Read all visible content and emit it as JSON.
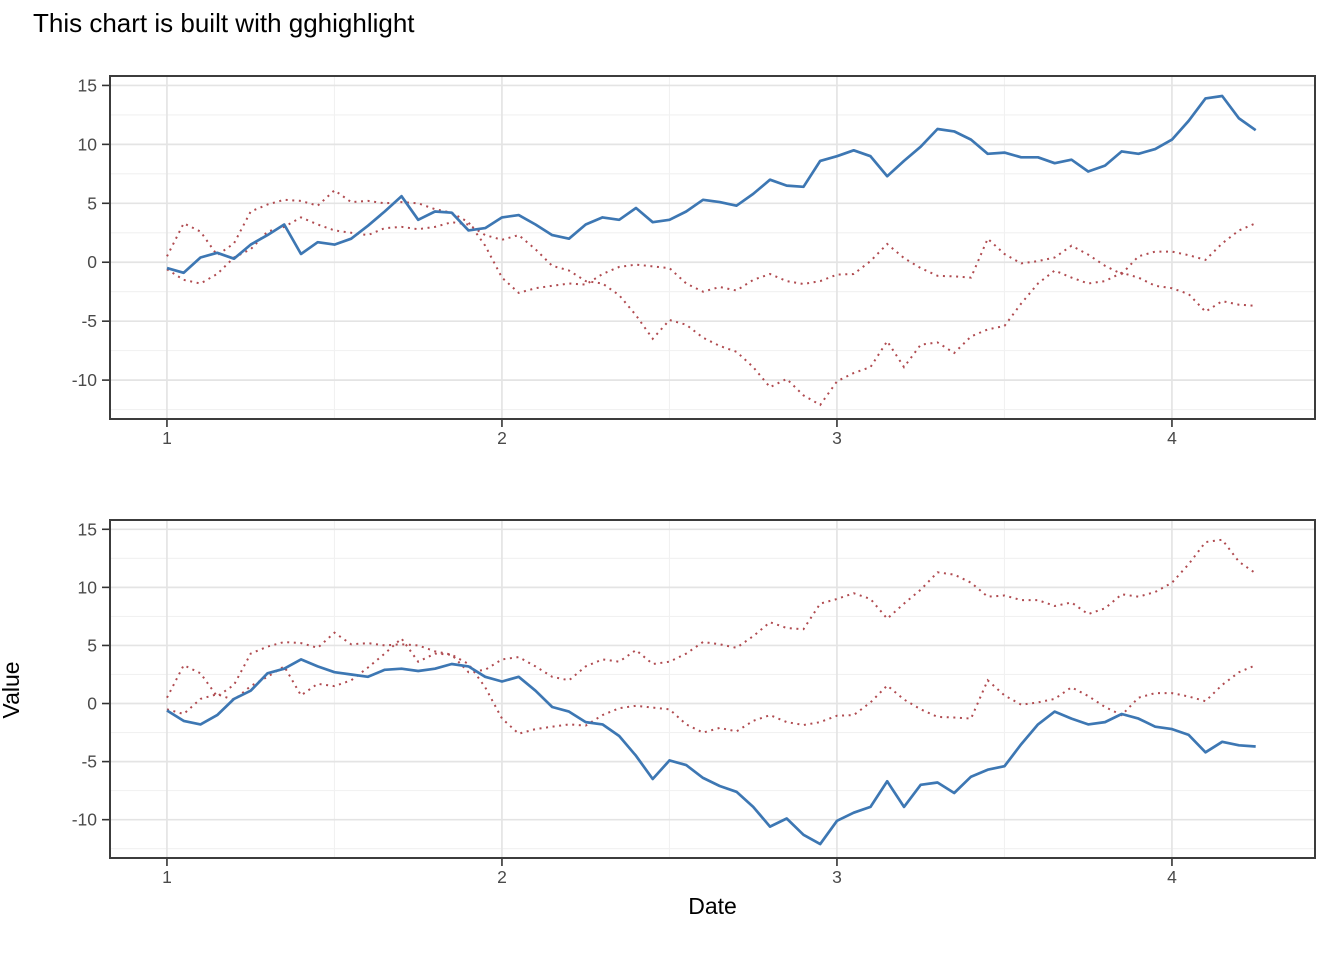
{
  "chart_data": {
    "type": "line",
    "title": "This chart is built with gghighlight",
    "xlabel": "Date",
    "ylabel": "Value",
    "x_ticks": [
      1,
      2,
      3,
      4
    ],
    "y_ticks": [
      15,
      10,
      5,
      0,
      -5,
      -10
    ],
    "x_minor": [
      1.5,
      2.5,
      3.5
    ],
    "y_minor": [
      12.5,
      7.5,
      2.5,
      -2.5,
      -7.5,
      -12.5
    ],
    "x_domain": [
      0.83,
      4.427
    ],
    "y_domain": [
      -13.3,
      15.8
    ],
    "x_start": 1,
    "x_step": 0.05,
    "grid": "on",
    "legend": "none",
    "series": [
      {
        "id": "a",
        "values": [
          -0.5,
          -0.9,
          0.4,
          0.8,
          0.3,
          1.5,
          2.3,
          3.2,
          0.7,
          1.7,
          1.5,
          2.0,
          3.1,
          4.3,
          5.6,
          3.6,
          4.3,
          4.2,
          2.7,
          2.9,
          3.8,
          4.0,
          3.2,
          2.3,
          2.0,
          3.2,
          3.8,
          3.6,
          4.6,
          3.4,
          3.6,
          4.3,
          5.3,
          5.1,
          4.8,
          5.8,
          7.0,
          6.5,
          6.4,
          8.6,
          9.0,
          9.5,
          9.0,
          7.3,
          8.6,
          9.8,
          11.3,
          11.1,
          10.4,
          9.2,
          9.3,
          8.9,
          8.9,
          8.4,
          8.7,
          7.7,
          8.2,
          9.4,
          9.2,
          9.6,
          10.4,
          12.0,
          13.9,
          14.1,
          12.2,
          11.2
        ]
      },
      {
        "id": "b",
        "values": [
          0.5,
          3.3,
          2.6,
          0.6,
          1.6,
          4.3,
          4.9,
          5.3,
          5.2,
          4.8,
          6.1,
          5.1,
          5.2,
          5.0,
          5.1,
          5.0,
          4.5,
          4.2,
          3.4,
          1.4,
          -1.3,
          -2.6,
          -2.2,
          -2.0,
          -1.8,
          -1.9,
          -1.0,
          -0.4,
          -0.2,
          -0.35,
          -0.5,
          -1.8,
          -2.5,
          -2.1,
          -2.4,
          -1.5,
          -1.0,
          -1.6,
          -1.85,
          -1.6,
          -1.05,
          -1.0,
          0.1,
          1.55,
          0.35,
          -0.5,
          -1.15,
          -1.2,
          -1.3,
          2.0,
          0.7,
          -0.1,
          0.1,
          0.4,
          1.4,
          0.65,
          -0.3,
          -1.0,
          0.5,
          0.9,
          0.9,
          0.6,
          0.2,
          1.6,
          2.7,
          3.3
        ]
      },
      {
        "id": "c",
        "values": [
          -0.6,
          -1.5,
          -1.8,
          -1.0,
          0.4,
          1.1,
          2.6,
          3.0,
          3.8,
          3.2,
          2.7,
          2.5,
          2.3,
          2.9,
          3.0,
          2.8,
          3.0,
          3.4,
          3.2,
          2.3,
          1.9,
          2.3,
          1.1,
          -0.3,
          -0.7,
          -1.6,
          -1.8,
          -2.8,
          -4.5,
          -6.5,
          -4.9,
          -5.3,
          -6.4,
          -7.1,
          -7.6,
          -8.9,
          -10.6,
          -9.9,
          -11.3,
          -12.1,
          -10.1,
          -9.4,
          -8.9,
          -6.7,
          -8.9,
          -7.0,
          -6.8,
          -7.7,
          -6.3,
          -5.7,
          -5.4,
          -3.5,
          -1.8,
          -0.7,
          -1.3,
          -1.8,
          -1.6,
          -0.9,
          -1.3,
          -2.0,
          -2.2,
          -2.7,
          -4.2,
          -3.3,
          -3.6,
          -3.7
        ]
      }
    ],
    "panels": [
      {
        "position": "top",
        "highlight": "a",
        "dotted": [
          "b",
          "c"
        ]
      },
      {
        "position": "bottom",
        "highlight": "c",
        "dotted": [
          "a",
          "b"
        ]
      }
    ],
    "style": {
      "highlight_color": "#3d77b3",
      "other_color": "#b04b50",
      "grid_major_color": "#e4e4e4",
      "grid_minor_color": "#f1f1f1",
      "panel_border_color": "#3c3c3c",
      "tick_label_color": "#4a4a4a",
      "tick_mark_color": "#333333"
    }
  }
}
